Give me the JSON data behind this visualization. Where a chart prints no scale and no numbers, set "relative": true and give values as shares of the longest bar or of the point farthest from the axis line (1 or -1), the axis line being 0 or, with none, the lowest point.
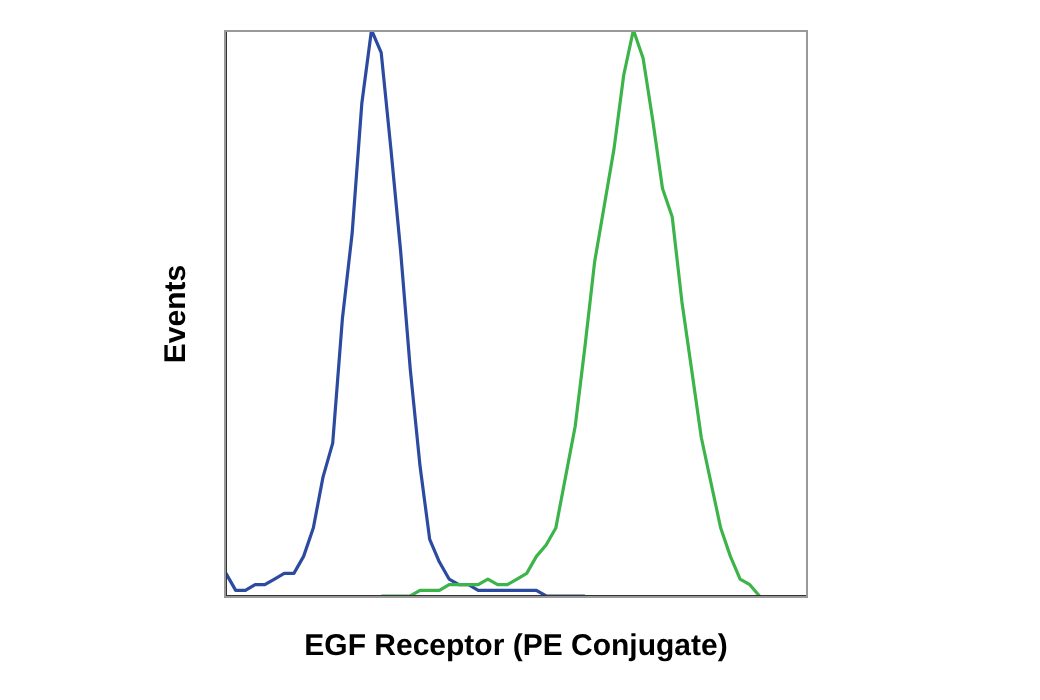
{
  "chart_data": {
    "type": "line",
    "xlabel": "EGF Receptor (PE Conjugate)",
    "ylabel": "Events",
    "relative": true,
    "marker": "none",
    "line_style": "solid",
    "grid": false,
    "legend": false,
    "categories": [
      null,
      null,
      null,
      null,
      null,
      null,
      null,
      null,
      null,
      null,
      null,
      null,
      null,
      null,
      null,
      null,
      null,
      null,
      null,
      null,
      null,
      null,
      null,
      null,
      null,
      null,
      null,
      null,
      null,
      null,
      null,
      null,
      null,
      null,
      null,
      null,
      null,
      null,
      null,
      null,
      null,
      null,
      null,
      null,
      null,
      null,
      null,
      null,
      null,
      null,
      null,
      null,
      null,
      null,
      null,
      null,
      null,
      null,
      null,
      null,
      null
    ],
    "series": [
      {
        "color": "#2b4aa0",
        "values": [
          0.04,
          0.01,
          0.01,
          0.02,
          0.02,
          0.03,
          0.04,
          0.04,
          0.07,
          0.12,
          0.21,
          0.27,
          0.49,
          0.64,
          0.87,
          1.0,
          0.96,
          0.79,
          0.61,
          0.4,
          0.23,
          0.1,
          0.06,
          0.03,
          0.02,
          0.02,
          0.01,
          0.01,
          0.01,
          0.01,
          0.01,
          0.01,
          0.01,
          0,
          0,
          0,
          0,
          0,
          null,
          null,
          null,
          null,
          null,
          null,
          null,
          null,
          null,
          null,
          null,
          null,
          null,
          null,
          null,
          null,
          null,
          null,
          null,
          null,
          null,
          null,
          null
        ]
      },
      {
        "color": "#3cb44a",
        "values": [
          null,
          null,
          null,
          null,
          null,
          null,
          null,
          null,
          null,
          null,
          null,
          null,
          null,
          null,
          null,
          null,
          0,
          0,
          0,
          0,
          0.01,
          0.01,
          0.01,
          0.02,
          0.02,
          0.02,
          0.02,
          0.03,
          0.02,
          0.02,
          0.03,
          0.04,
          0.07,
          0.09,
          0.12,
          0.21,
          0.3,
          0.44,
          0.59,
          0.69,
          0.79,
          0.92,
          1.0,
          0.95,
          0.84,
          0.72,
          0.67,
          0.52,
          0.4,
          0.28,
          0.2,
          0.12,
          0.07,
          0.03,
          0.02,
          0,
          null,
          null,
          null,
          null,
          null
        ]
      }
    ]
  }
}
